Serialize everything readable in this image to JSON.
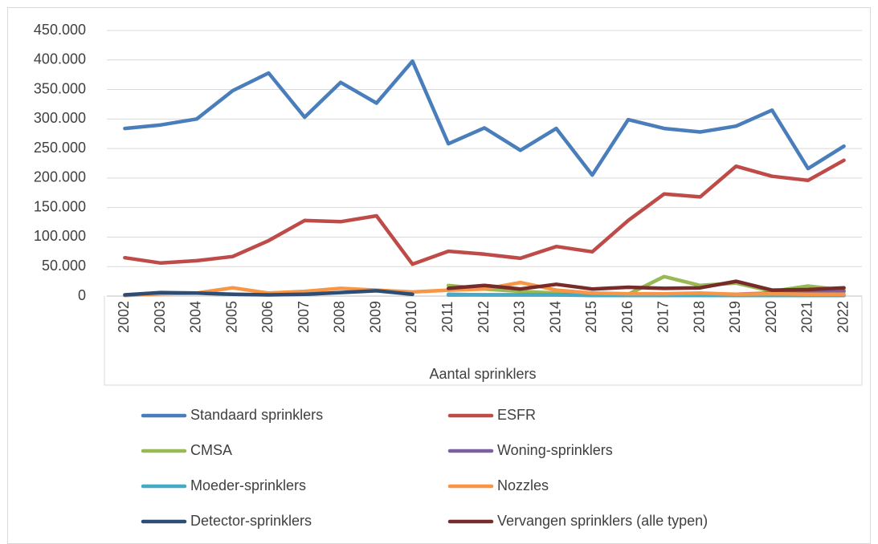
{
  "chart_data": {
    "type": "line",
    "categories": [
      "2002",
      "2003",
      "2004",
      "2005",
      "2006",
      "2007",
      "2008",
      "2009",
      "2010",
      "2011",
      "2012",
      "2013",
      "2014",
      "2015",
      "2016",
      "2017",
      "2018",
      "2019",
      "2020",
      "2021",
      "2022"
    ],
    "x_label": "Aantal sprinklers",
    "ylim": [
      0,
      450000
    ],
    "yticks": [
      0,
      {
        "value": 50000,
        "label": "50.000"
      },
      {
        "value": 100000,
        "label": "100.000"
      },
      {
        "value": 150000,
        "label": "150.000"
      },
      {
        "value": 200000,
        "label": "200.000"
      },
      {
        "value": 250000,
        "label": "250.000"
      },
      {
        "value": 300000,
        "label": "300.000"
      },
      {
        "value": 350000,
        "label": "350.000"
      },
      {
        "value": 400000,
        "label": "400.000"
      },
      {
        "value": 450000,
        "label": "450.000"
      }
    ],
    "grid": true,
    "legend": "bottom",
    "series": [
      {
        "name": "Standaard sprinklers",
        "color": "#4a7ebb",
        "values": [
          284000,
          290000,
          300000,
          348000,
          378000,
          303000,
          362000,
          327000,
          398000,
          258000,
          285000,
          247000,
          284000,
          205000,
          299000,
          284000,
          278000,
          288000,
          315000,
          216000,
          254000
        ]
      },
      {
        "name": "ESFR",
        "color": "#be4b48",
        "values": [
          65000,
          56000,
          60000,
          67000,
          94000,
          128000,
          126000,
          136000,
          54000,
          76000,
          71000,
          64000,
          84000,
          75000,
          128000,
          173000,
          168000,
          220000,
          203000,
          196000,
          230000
        ]
      },
      {
        "name": "CMSA",
        "color": "#98b954",
        "values": [
          null,
          null,
          null,
          null,
          null,
          null,
          null,
          null,
          null,
          18000,
          12000,
          8000,
          5000,
          3000,
          3000,
          33000,
          18000,
          22000,
          8000,
          17000,
          10000
        ]
      },
      {
        "name": "Woning-sprinklers",
        "color": "#7d60a0",
        "values": [
          null,
          null,
          null,
          null,
          null,
          null,
          null,
          null,
          null,
          2000,
          2000,
          2000,
          2000,
          2000,
          2000,
          2000,
          2000,
          3000,
          5000,
          6000,
          8000
        ]
      },
      {
        "name": "Moeder-sprinklers",
        "color": "#46aac5",
        "values": [
          null,
          null,
          null,
          null,
          null,
          null,
          null,
          null,
          null,
          3000,
          2000,
          2000,
          2000,
          1000,
          1000,
          1000,
          1000,
          1000,
          1000,
          1000,
          1000
        ]
      },
      {
        "name": "Nozzles",
        "color": "#f79646",
        "values": [
          1000,
          4000,
          5000,
          14000,
          5000,
          8000,
          13000,
          10000,
          7000,
          10000,
          12000,
          23000,
          10000,
          5000,
          4000,
          4000,
          5000,
          3000,
          4000,
          3000,
          3000
        ]
      },
      {
        "name": "Detector-sprinklers",
        "color": "#2c4d75",
        "values": [
          2000,
          6000,
          5000,
          3000,
          2000,
          3000,
          6000,
          9000,
          3000,
          null,
          null,
          null,
          null,
          null,
          null,
          null,
          null,
          null,
          null,
          null,
          null
        ]
      },
      {
        "name": "Vervangen sprinklers (alle typen)",
        "color": "#772c2a",
        "values": [
          null,
          null,
          null,
          null,
          null,
          null,
          null,
          null,
          null,
          13000,
          18000,
          12000,
          20000,
          12000,
          15000,
          13000,
          14000,
          25000,
          10000,
          11000,
          14000
        ]
      }
    ]
  }
}
